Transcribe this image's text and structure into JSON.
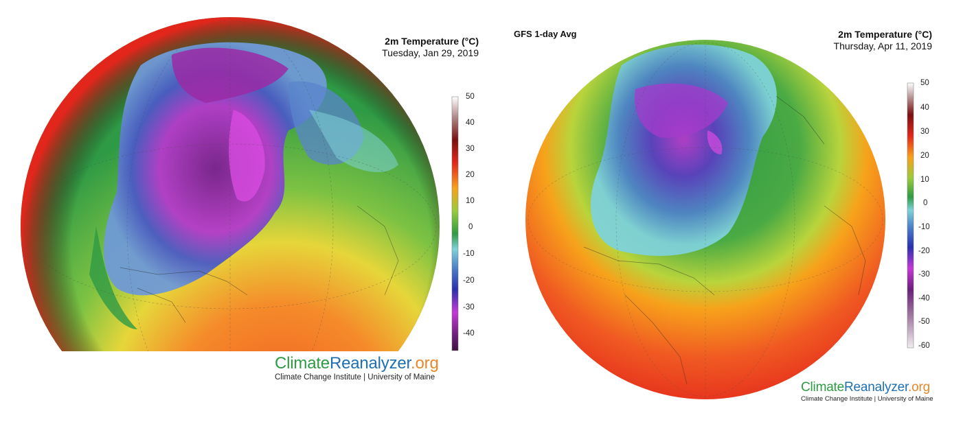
{
  "left_map": {
    "title": "2m Temperature (°C)",
    "date": "Tuesday, Jan 29, 2019",
    "colorbar_ticks": [
      "50",
      "40",
      "30",
      "20",
      "10",
      "0",
      "-10",
      "-20",
      "-30",
      "-40"
    ],
    "brand_part1": "Climate",
    "brand_part2": "Reanalyzer",
    "brand_part3": ".org",
    "brand_sub": "Climate Change Institute | University of Maine"
  },
  "right_map": {
    "model": "GFS 1-day Avg",
    "title": "2m Temperature (°C)",
    "date": "Thursday, Apr 11, 2019",
    "colorbar_ticks": [
      "50",
      "40",
      "30",
      "20",
      "10",
      "0",
      "-10",
      "-20",
      "-30",
      "-40",
      "-50",
      "-60"
    ],
    "brand_part1": "Climate",
    "brand_part2": "Reanalyzer",
    "brand_part3": ".org",
    "brand_sub": "Climate Change Institute | University of Maine"
  }
}
